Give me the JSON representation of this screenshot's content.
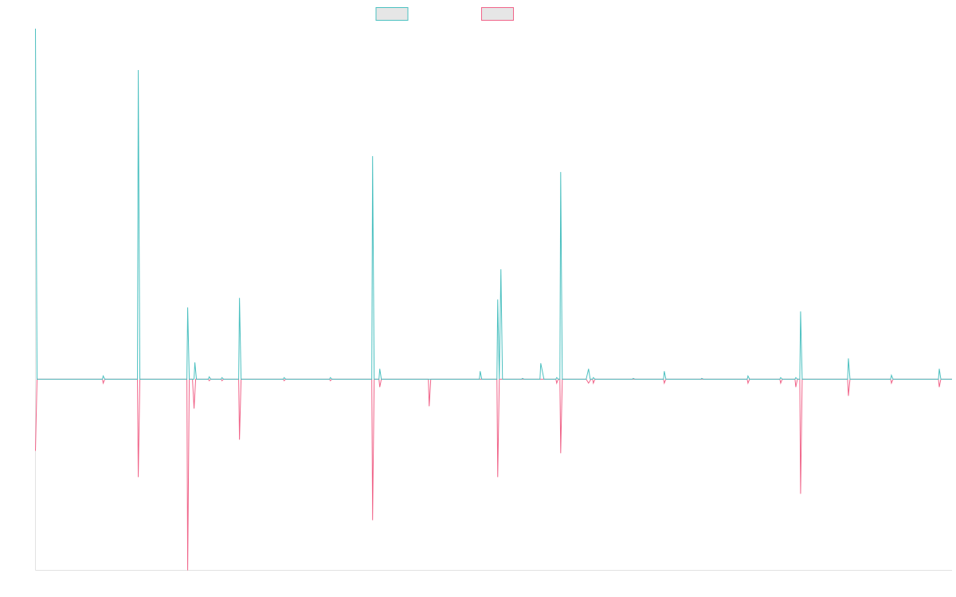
{
  "chart_data": {
    "type": "line",
    "title": "",
    "xlabel": "",
    "ylabel": "",
    "grid": false,
    "legend_position": "top-center",
    "x_range": [
      0,
      1150
    ],
    "ylim": [
      -240,
      440
    ],
    "series": [
      {
        "color": "#4bc0c0",
        "points": [
          [
            0,
            440
          ],
          [
            2,
            0
          ],
          [
            84,
            0
          ],
          [
            85,
            4
          ],
          [
            87,
            0
          ],
          [
            128,
            0
          ],
          [
            129,
            388
          ],
          [
            131,
            0
          ],
          [
            190,
            0
          ],
          [
            191,
            90
          ],
          [
            193,
            0
          ],
          [
            199,
            0
          ],
          [
            200,
            21
          ],
          [
            202,
            0
          ],
          [
            217,
            0
          ],
          [
            218,
            3
          ],
          [
            220,
            0
          ],
          [
            233,
            0
          ],
          [
            234,
            2
          ],
          [
            236,
            0
          ],
          [
            255,
            0
          ],
          [
            256,
            102
          ],
          [
            258,
            0
          ],
          [
            311,
            0
          ],
          [
            312,
            2
          ],
          [
            314,
            0
          ],
          [
            369,
            0
          ],
          [
            370,
            2
          ],
          [
            372,
            0
          ],
          [
            422,
            0
          ],
          [
            423,
            280
          ],
          [
            425,
            0
          ],
          [
            431,
            0
          ],
          [
            432,
            13
          ],
          [
            434,
            0
          ],
          [
            557,
            0
          ],
          [
            558,
            10
          ],
          [
            560,
            0
          ],
          [
            579,
            0
          ],
          [
            580,
            100
          ],
          [
            582,
            0
          ],
          [
            584,
            138
          ],
          [
            586,
            0
          ],
          [
            610,
            0
          ],
          [
            611,
            1
          ],
          [
            613,
            0
          ],
          [
            633,
            0
          ],
          [
            634,
            20
          ],
          [
            638,
            0
          ],
          [
            653,
            0
          ],
          [
            654,
            2
          ],
          [
            656,
            0
          ],
          [
            658,
            0
          ],
          [
            659,
            260
          ],
          [
            661,
            0
          ],
          [
            691,
            0
          ],
          [
            694,
            13
          ],
          [
            696,
            0
          ],
          [
            699,
            0
          ],
          [
            700,
            2
          ],
          [
            702,
            0
          ],
          [
            749,
            0
          ],
          [
            750,
            1
          ],
          [
            752,
            0
          ],
          [
            788,
            0
          ],
          [
            789,
            10
          ],
          [
            791,
            0
          ],
          [
            835,
            0
          ],
          [
            836,
            1
          ],
          [
            838,
            0
          ],
          [
            893,
            0
          ],
          [
            894,
            4
          ],
          [
            896,
            0
          ],
          [
            934,
            0
          ],
          [
            935,
            2
          ],
          [
            937,
            0
          ],
          [
            953,
            0
          ],
          [
            954,
            2
          ],
          [
            956,
            0
          ],
          [
            959,
            0
          ],
          [
            960,
            85
          ],
          [
            962,
            0
          ],
          [
            1019,
            0
          ],
          [
            1020,
            26
          ],
          [
            1022,
            0
          ],
          [
            1073,
            0
          ],
          [
            1074,
            5
          ],
          [
            1076,
            0
          ],
          [
            1133,
            0
          ],
          [
            1134,
            13
          ],
          [
            1136,
            0
          ],
          [
            1150,
            0
          ]
        ]
      },
      {
        "color": "#f06489",
        "points": [
          [
            0,
            -90
          ],
          [
            2,
            0
          ],
          [
            84,
            0
          ],
          [
            85,
            -5
          ],
          [
            87,
            0
          ],
          [
            128,
            0
          ],
          [
            129,
            -123
          ],
          [
            131,
            0
          ],
          [
            190,
            0
          ],
          [
            191,
            -240
          ],
          [
            193,
            0
          ],
          [
            197,
            0
          ],
          [
            199,
            -37
          ],
          [
            201,
            0
          ],
          [
            217,
            0
          ],
          [
            218,
            -2
          ],
          [
            220,
            0
          ],
          [
            233,
            0
          ],
          [
            234,
            -2
          ],
          [
            236,
            0
          ],
          [
            255,
            0
          ],
          [
            256,
            -76
          ],
          [
            258,
            0
          ],
          [
            311,
            0
          ],
          [
            312,
            -2
          ],
          [
            314,
            0
          ],
          [
            369,
            0
          ],
          [
            370,
            -2
          ],
          [
            372,
            0
          ],
          [
            422,
            0
          ],
          [
            423,
            -177
          ],
          [
            425,
            0
          ],
          [
            431,
            0
          ],
          [
            432,
            -10
          ],
          [
            434,
            0
          ],
          [
            493,
            0
          ],
          [
            494,
            -34
          ],
          [
            496,
            0
          ],
          [
            579,
            0
          ],
          [
            580,
            -123
          ],
          [
            582,
            0
          ],
          [
            653,
            0
          ],
          [
            654,
            -5
          ],
          [
            656,
            0
          ],
          [
            658,
            0
          ],
          [
            659,
            -93
          ],
          [
            661,
            0
          ],
          [
            691,
            0
          ],
          [
            694,
            -5
          ],
          [
            697,
            0
          ],
          [
            699,
            0
          ],
          [
            700,
            -5
          ],
          [
            702,
            0
          ],
          [
            788,
            0
          ],
          [
            789,
            -5
          ],
          [
            791,
            0
          ],
          [
            893,
            0
          ],
          [
            894,
            -5
          ],
          [
            896,
            0
          ],
          [
            934,
            0
          ],
          [
            935,
            -5
          ],
          [
            937,
            0
          ],
          [
            953,
            0
          ],
          [
            954,
            -10
          ],
          [
            956,
            0
          ],
          [
            959,
            0
          ],
          [
            960,
            -144
          ],
          [
            962,
            0
          ],
          [
            1019,
            0
          ],
          [
            1020,
            -21
          ],
          [
            1022,
            0
          ],
          [
            1073,
            0
          ],
          [
            1074,
            -5
          ],
          [
            1076,
            0
          ],
          [
            1133,
            0
          ],
          [
            1134,
            -10
          ],
          [
            1136,
            0
          ],
          [
            1150,
            0
          ]
        ]
      }
    ]
  }
}
